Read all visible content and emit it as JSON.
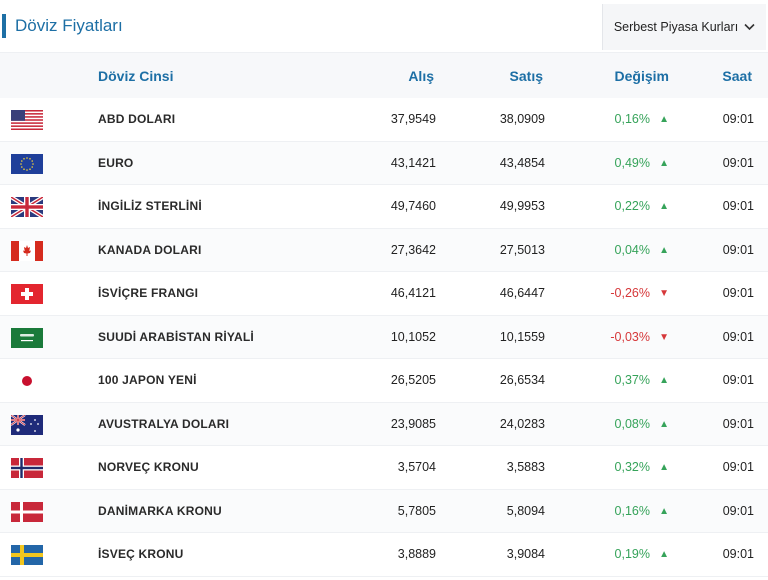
{
  "header": {
    "title": "Döviz Fiyatları",
    "dropdown_label": "Serbest Piyasa Kurları"
  },
  "columns": {
    "name": "Döviz Cinsi",
    "buy": "Alış",
    "sell": "Satış",
    "change": "Değişim",
    "time": "Saat"
  },
  "rows": [
    {
      "flag": "us-flag-icon",
      "name": "ABD DOLARI",
      "buy": "37,9549",
      "sell": "38,0909",
      "change": "0,16%",
      "direction": "up",
      "time": "09:01"
    },
    {
      "flag": "eu-flag-icon",
      "name": "EURO",
      "buy": "43,1421",
      "sell": "43,4854",
      "change": "0,49%",
      "direction": "up",
      "time": "09:01"
    },
    {
      "flag": "uk-flag-icon",
      "name": "İNGİLİZ STERLİNİ",
      "buy": "49,7460",
      "sell": "49,9953",
      "change": "0,22%",
      "direction": "up",
      "time": "09:01"
    },
    {
      "flag": "canada-flag-icon",
      "name": "KANADA DOLARI",
      "buy": "27,3642",
      "sell": "27,5013",
      "change": "0,04%",
      "direction": "up",
      "time": "09:01"
    },
    {
      "flag": "switzerland-flag-icon",
      "name": "İSVİÇRE FRANGI",
      "buy": "46,4121",
      "sell": "46,6447",
      "change": "-0,26%",
      "direction": "down",
      "time": "09:01"
    },
    {
      "flag": "saudi-arabia-flag-icon",
      "name": "SUUDİ ARABİSTAN RİYALİ",
      "buy": "10,1052",
      "sell": "10,1559",
      "change": "-0,03%",
      "direction": "down",
      "time": "09:01"
    },
    {
      "flag": "japan-flag-icon",
      "name": "100 JAPON YENİ",
      "buy": "26,5205",
      "sell": "26,6534",
      "change": "0,37%",
      "direction": "up",
      "time": "09:01"
    },
    {
      "flag": "australia-flag-icon",
      "name": "AVUSTRALYA DOLARI",
      "buy": "23,9085",
      "sell": "24,0283",
      "change": "0,08%",
      "direction": "up",
      "time": "09:01"
    },
    {
      "flag": "norway-flag-icon",
      "name": "NORVEÇ KRONU",
      "buy": "3,5704",
      "sell": "3,5883",
      "change": "0,32%",
      "direction": "up",
      "time": "09:01"
    },
    {
      "flag": "denmark-flag-icon",
      "name": "DANİMARKA KRONU",
      "buy": "5,7805",
      "sell": "5,8094",
      "change": "0,16%",
      "direction": "up",
      "time": "09:01"
    },
    {
      "flag": "sweden-flag-icon",
      "name": "İSVEÇ KRONU",
      "buy": "3,8889",
      "sell": "3,9084",
      "change": "0,19%",
      "direction": "up",
      "time": "09:01"
    }
  ],
  "colors": {
    "accent": "#1d6fa5",
    "up": "#36a35a",
    "down": "#d6383a"
  }
}
